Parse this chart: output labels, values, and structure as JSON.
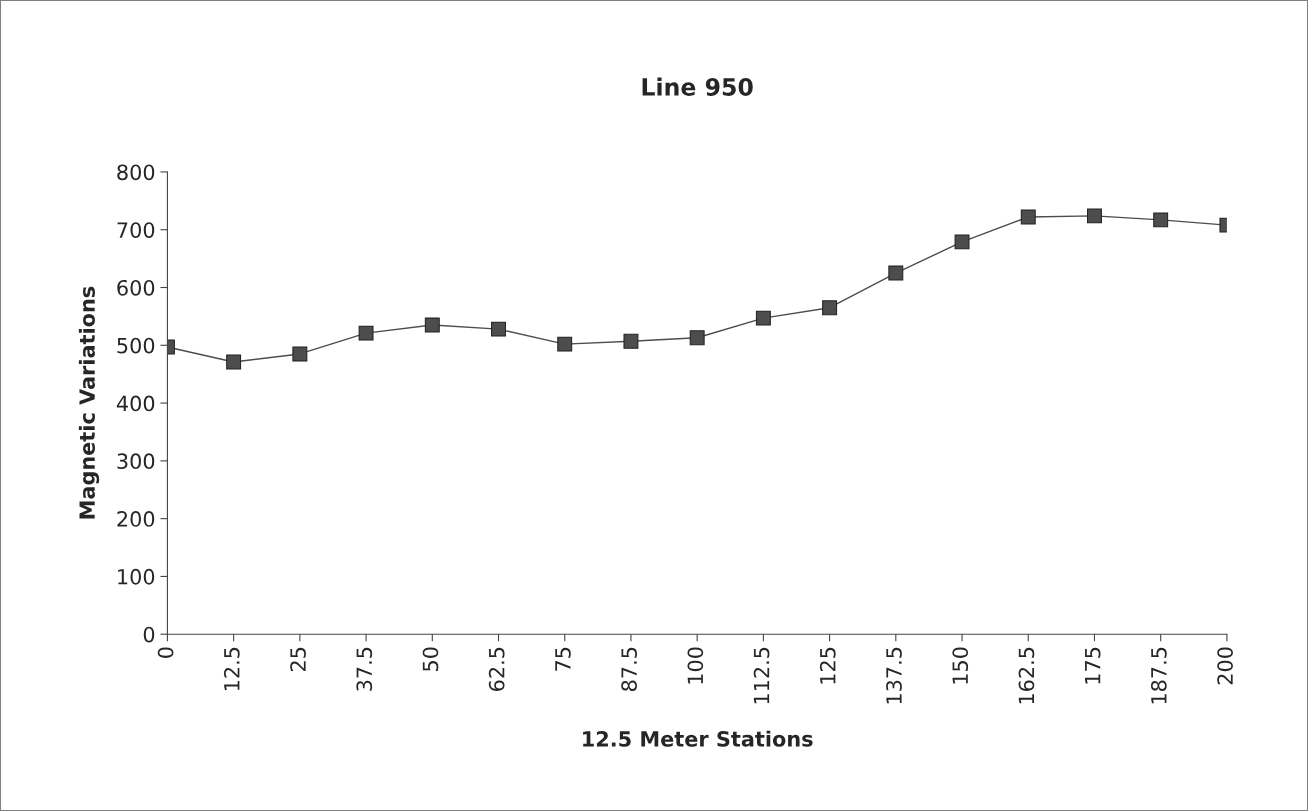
{
  "chart_data": {
    "type": "line",
    "title": "Line 950",
    "xlabel": "12.5 Meter Stations",
    "ylabel": "Magnetic Variations",
    "x": [
      0,
      12.5,
      25,
      37.5,
      50,
      62.5,
      75,
      87.5,
      100,
      112.5,
      125,
      137.5,
      150,
      162.5,
      175,
      187.5,
      200
    ],
    "series": [
      {
        "color": "#4d4d4d",
        "values": [
          497,
          471,
          485,
          521,
          535,
          528,
          502,
          507,
          513,
          547,
          565,
          625,
          679,
          722,
          724,
          717,
          708
        ]
      }
    ],
    "xlim": [
      0,
      200
    ],
    "xticks": [
      0,
      12.5,
      25,
      37.5,
      50,
      62.5,
      75,
      87.5,
      100,
      112.5,
      125,
      137.5,
      150,
      162.5,
      175,
      187.5,
      200
    ],
    "ylim": [
      0,
      800
    ],
    "yticks": [
      0,
      100,
      200,
      300,
      400,
      500,
      600,
      700,
      800
    ],
    "marker": "square",
    "line_style": "solid",
    "grid": false,
    "legend": false
  }
}
